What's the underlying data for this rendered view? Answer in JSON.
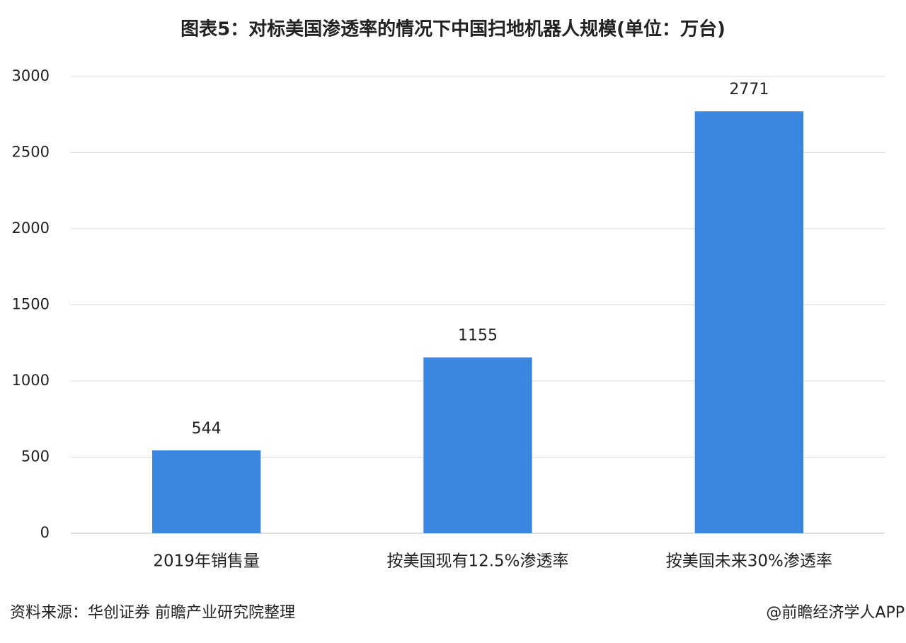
{
  "chart_data": {
    "type": "bar",
    "title": "图表5：对标美国渗透率的情况下中国扫地机器人规模(单位：万台)",
    "categories": [
      "2019年销售量",
      "按美国现有12.5%渗透率",
      "按美国未来30%渗透率"
    ],
    "values": [
      544,
      1155,
      2771
    ],
    "color": "#3b86e0",
    "ylim": [
      0,
      3000
    ],
    "yticks": [
      0,
      500,
      1000,
      1500,
      2000,
      2500,
      3000
    ],
    "grid": true,
    "source": "资料来源：华创证券 前瞻产业研究院整理",
    "credit": "@前瞻经济学人APP"
  }
}
